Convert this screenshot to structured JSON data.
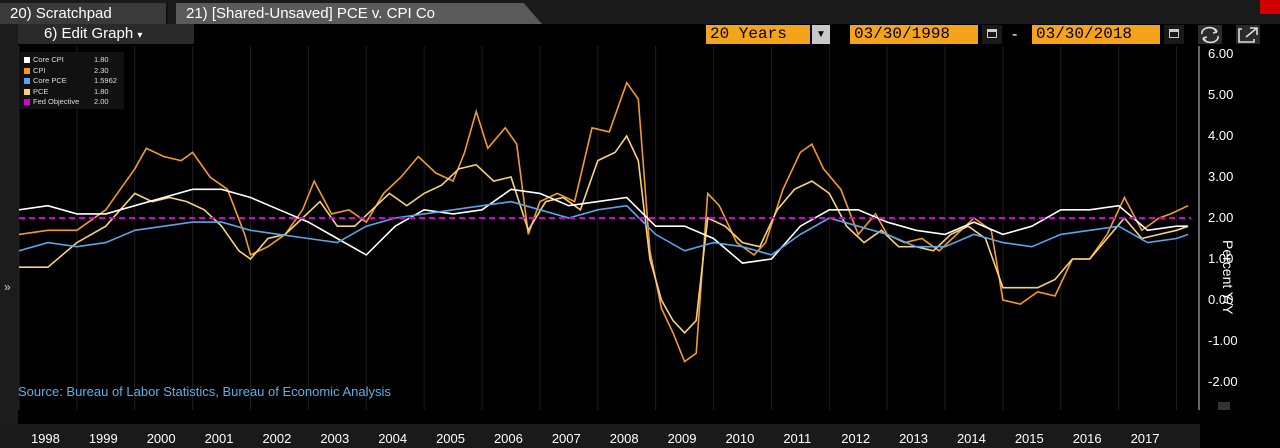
{
  "tabs": {
    "tab1": "20) Scratchpad",
    "tab2": "21) [Shared-Unsaved] PCE v. CPI Co"
  },
  "toolbar": {
    "edit_graph": "6) Edit Graph",
    "edit_caret": "▾",
    "period": "20 Years",
    "start_date": "03/30/1998",
    "separator": "-",
    "end_date": "03/30/2018"
  },
  "side": {
    "expand_label": "»"
  },
  "legend": [
    {
      "name": "Core CPI",
      "value": "1.80",
      "color": "#ffffff"
    },
    {
      "name": "CPI",
      "value": "2.30",
      "color": "#f39c24"
    },
    {
      "name": "Core PCE",
      "value": "1.5962",
      "color": "#5aa5ea"
    },
    {
      "name": "PCE",
      "value": "1.80",
      "color": "#f7d27a"
    },
    {
      "name": "Fed Objective",
      "value": "2.00",
      "color": "#d600d6"
    }
  ],
  "source": "Source: Bureau of Labor Statistics, Bureau of Economic Analysis",
  "chart_data": {
    "type": "line",
    "ylabel": "Percent Y/Y",
    "ylim": [
      -2.5,
      6.3
    ],
    "y_ticks": [
      "6.00",
      "5.00",
      "4.00",
      "3.00",
      "2.00",
      "1.00",
      "0.00",
      "-1.00",
      "-2.00"
    ],
    "y_tick_values": [
      6,
      5,
      4,
      3,
      2,
      1,
      0,
      -1,
      -2
    ],
    "x_ticks": [
      "1998",
      "1999",
      "2000",
      "2001",
      "2002",
      "2003",
      "2004",
      "2005",
      "2006",
      "2007",
      "2008",
      "2009",
      "2010",
      "2011",
      "2012",
      "2013",
      "2014",
      "2015",
      "2016",
      "2017"
    ],
    "xlim": [
      1998.0,
      2018.25
    ],
    "series": [
      {
        "name": "CPI",
        "color": "#f39c24",
        "x": [
          1998.0,
          1998.5,
          1999.0,
          1999.5,
          2000.0,
          2000.2,
          2000.5,
          2000.8,
          2001.0,
          2001.3,
          2001.6,
          2001.9,
          2002.0,
          2002.3,
          2002.6,
          2002.9,
          2003.1,
          2003.4,
          2003.7,
          2004.0,
          2004.3,
          2004.6,
          2004.9,
          2005.2,
          2005.5,
          2005.7,
          2005.9,
          2006.1,
          2006.4,
          2006.6,
          2006.8,
          2007.0,
          2007.3,
          2007.6,
          2007.9,
          2008.2,
          2008.5,
          2008.7,
          2008.9,
          2009.1,
          2009.3,
          2009.5,
          2009.7,
          2009.9,
          2010.1,
          2010.4,
          2010.7,
          2010.9,
          2011.2,
          2011.5,
          2011.7,
          2011.9,
          2012.2,
          2012.5,
          2012.8,
          2013.0,
          2013.3,
          2013.6,
          2013.9,
          2014.2,
          2014.5,
          2014.8,
          2015.0,
          2015.3,
          2015.6,
          2015.9,
          2016.2,
          2016.5,
          2016.8,
          2017.1,
          2017.4,
          2017.7,
          2017.9,
          2018.2
        ],
        "y": [
          1.6,
          1.7,
          1.7,
          2.2,
          3.2,
          3.7,
          3.5,
          3.4,
          3.6,
          3.0,
          2.7,
          1.6,
          1.1,
          1.3,
          1.6,
          2.2,
          2.9,
          2.1,
          2.2,
          1.9,
          2.6,
          3.0,
          3.5,
          3.1,
          2.9,
          3.6,
          4.6,
          3.7,
          4.2,
          3.8,
          1.6,
          2.4,
          2.6,
          2.4,
          4.2,
          4.1,
          5.3,
          4.9,
          1.2,
          -0.2,
          -0.8,
          -1.5,
          -1.3,
          2.6,
          2.3,
          1.4,
          1.1,
          1.4,
          2.7,
          3.6,
          3.8,
          3.2,
          2.7,
          1.6,
          2.1,
          1.6,
          1.4,
          1.5,
          1.2,
          1.6,
          2.0,
          1.7,
          0.0,
          -0.1,
          0.2,
          0.1,
          1.0,
          1.0,
          1.6,
          2.5,
          1.7,
          2.0,
          2.1,
          2.3
        ]
      },
      {
        "name": "PCE",
        "color": "#f7d27a",
        "x": [
          1998.0,
          1998.5,
          1999.0,
          1999.5,
          2000.0,
          2000.3,
          2000.6,
          2000.9,
          2001.2,
          2001.5,
          2001.8,
          2002.0,
          2002.3,
          2002.6,
          2002.9,
          2003.2,
          2003.5,
          2003.8,
          2004.1,
          2004.4,
          2004.7,
          2005.0,
          2005.3,
          2005.6,
          2005.9,
          2006.2,
          2006.5,
          2006.8,
          2007.1,
          2007.4,
          2007.7,
          2008.0,
          2008.3,
          2008.5,
          2008.7,
          2008.9,
          2009.1,
          2009.3,
          2009.5,
          2009.7,
          2009.9,
          2010.2,
          2010.5,
          2010.8,
          2011.1,
          2011.4,
          2011.7,
          2012.0,
          2012.3,
          2012.6,
          2012.9,
          2013.2,
          2013.5,
          2013.8,
          2014.1,
          2014.4,
          2014.7,
          2015.0,
          2015.3,
          2015.6,
          2015.9,
          2016.2,
          2016.5,
          2016.8,
          2017.1,
          2017.4,
          2017.7,
          2018.0,
          2018.2
        ],
        "y": [
          0.8,
          0.8,
          1.4,
          1.8,
          2.6,
          2.4,
          2.5,
          2.4,
          2.2,
          1.8,
          1.2,
          1.0,
          1.5,
          1.6,
          2.0,
          2.4,
          1.8,
          1.8,
          2.2,
          2.6,
          2.3,
          2.6,
          2.8,
          3.2,
          3.3,
          2.9,
          3.0,
          1.7,
          2.4,
          2.5,
          2.2,
          3.4,
          3.6,
          4.0,
          3.4,
          1.0,
          0.0,
          -0.5,
          -0.8,
          -0.5,
          2.0,
          1.8,
          1.4,
          1.3,
          2.2,
          2.7,
          2.9,
          2.6,
          1.8,
          1.4,
          1.7,
          1.3,
          1.3,
          1.2,
          1.6,
          1.8,
          1.5,
          0.3,
          0.3,
          0.3,
          0.5,
          1.0,
          1.0,
          1.5,
          2.0,
          1.5,
          1.6,
          1.7,
          1.8
        ]
      },
      {
        "name": "Core CPI",
        "color": "#ffffff",
        "x": [
          1998.0,
          1998.5,
          1999.0,
          1999.5,
          2000.0,
          2000.5,
          2001.0,
          2001.5,
          2002.0,
          2002.5,
          2003.0,
          2003.5,
          2004.0,
          2004.5,
          2005.0,
          2005.5,
          2006.0,
          2006.5,
          2007.0,
          2007.5,
          2008.0,
          2008.5,
          2009.0,
          2009.5,
          2010.0,
          2010.5,
          2011.0,
          2011.5,
          2012.0,
          2012.5,
          2013.0,
          2013.5,
          2014.0,
          2014.5,
          2015.0,
          2015.5,
          2016.0,
          2016.5,
          2017.0,
          2017.5,
          2018.0,
          2018.2
        ],
        "y": [
          2.2,
          2.3,
          2.1,
          2.1,
          2.3,
          2.5,
          2.7,
          2.7,
          2.5,
          2.2,
          1.9,
          1.5,
          1.1,
          1.8,
          2.2,
          2.1,
          2.2,
          2.7,
          2.6,
          2.3,
          2.4,
          2.5,
          1.8,
          1.8,
          1.5,
          0.9,
          1.0,
          1.8,
          2.2,
          2.2,
          1.9,
          1.7,
          1.6,
          1.9,
          1.6,
          1.8,
          2.2,
          2.2,
          2.3,
          1.7,
          1.8,
          1.8
        ]
      },
      {
        "name": "Core PCE",
        "color": "#5aa5ea",
        "x": [
          1998.0,
          1998.5,
          1999.0,
          1999.5,
          2000.0,
          2000.5,
          2001.0,
          2001.5,
          2002.0,
          2002.5,
          2003.0,
          2003.5,
          2004.0,
          2004.5,
          2005.0,
          2005.5,
          2006.0,
          2006.5,
          2007.0,
          2007.5,
          2008.0,
          2008.5,
          2009.0,
          2009.5,
          2010.0,
          2010.5,
          2011.0,
          2011.5,
          2012.0,
          2012.5,
          2013.0,
          2013.5,
          2014.0,
          2014.5,
          2015.0,
          2015.5,
          2016.0,
          2016.5,
          2017.0,
          2017.5,
          2018.0,
          2018.2
        ],
        "y": [
          1.2,
          1.4,
          1.3,
          1.4,
          1.7,
          1.8,
          1.9,
          1.9,
          1.7,
          1.6,
          1.5,
          1.4,
          1.8,
          2.0,
          2.1,
          2.2,
          2.3,
          2.4,
          2.2,
          2.0,
          2.2,
          2.3,
          1.6,
          1.2,
          1.4,
          1.3,
          1.1,
          1.6,
          2.0,
          1.8,
          1.6,
          1.3,
          1.3,
          1.6,
          1.4,
          1.3,
          1.6,
          1.7,
          1.8,
          1.4,
          1.5,
          1.6
        ]
      },
      {
        "name": "Fed Objective",
        "color": "#d600d6",
        "x": [
          1998.0,
          2018.25
        ],
        "y": [
          2.0,
          2.0
        ]
      }
    ]
  }
}
